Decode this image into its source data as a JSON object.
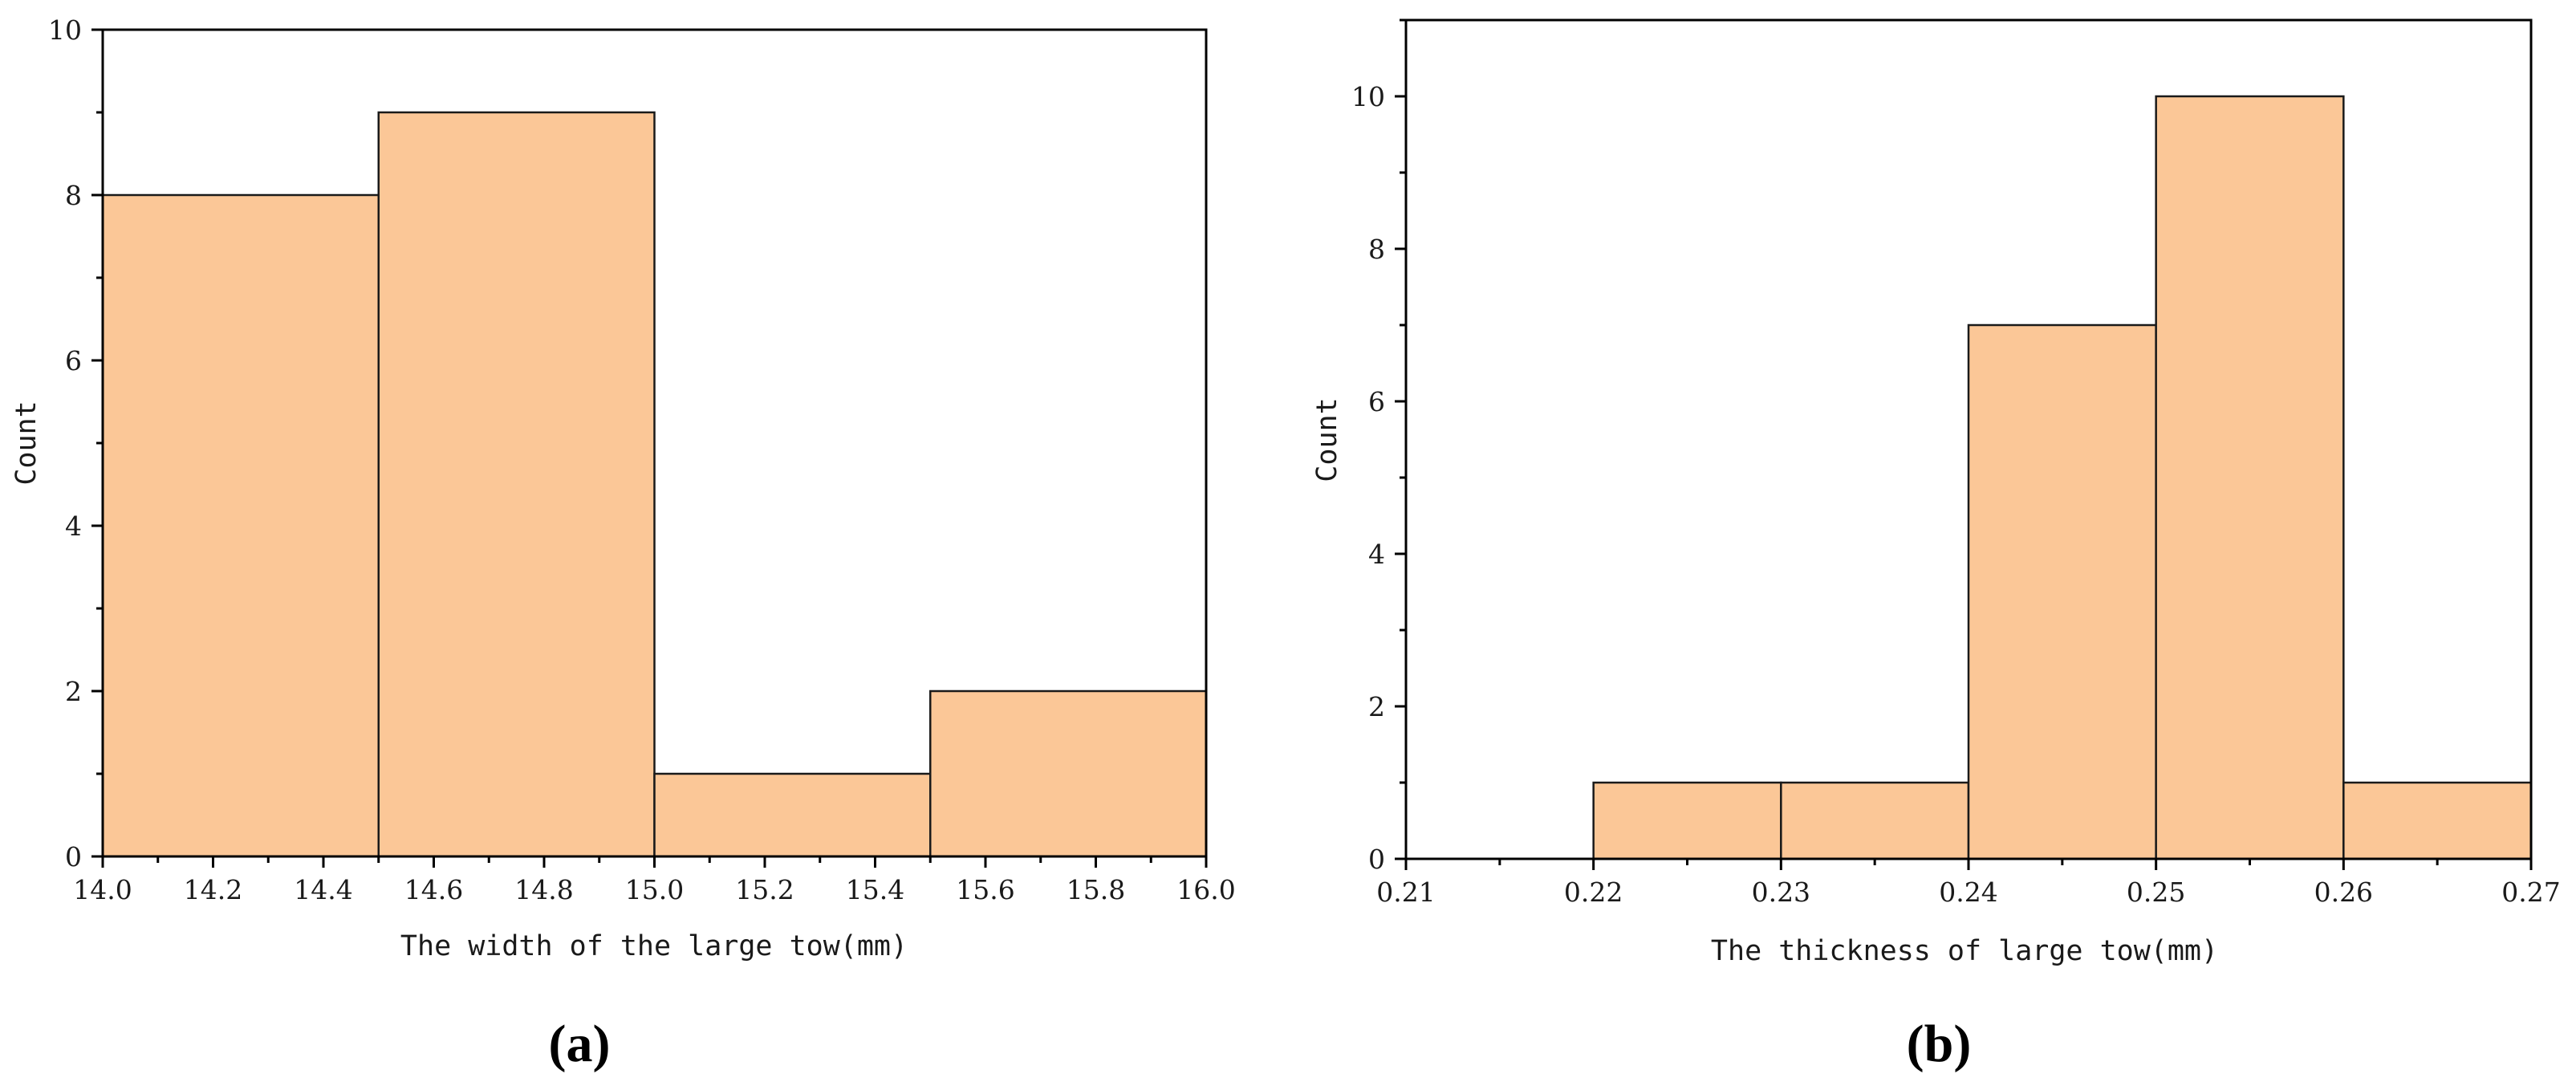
{
  "bar_color": "#FBC797",
  "chart_data": [
    {
      "type": "bar",
      "panel_label": "(a)",
      "title": "",
      "xlabel": "The width of the large tow(mm)",
      "ylabel": "Count",
      "xlim": [
        14.0,
        16.0
      ],
      "ylim": [
        0,
        10
      ],
      "x_ticks": [
        "14.0",
        "14.2",
        "14.4",
        "14.6",
        "14.8",
        "15.0",
        "15.2",
        "15.4",
        "15.6",
        "15.8",
        "16.0"
      ],
      "y_ticks": [
        "0",
        "2",
        "4",
        "6",
        "8",
        "10"
      ],
      "bins": [
        {
          "start": 14.0,
          "end": 14.5,
          "count": 8
        },
        {
          "start": 14.5,
          "end": 15.0,
          "count": 9
        },
        {
          "start": 15.0,
          "end": 15.5,
          "count": 1
        },
        {
          "start": 15.5,
          "end": 16.0,
          "count": 2
        }
      ]
    },
    {
      "type": "bar",
      "panel_label": "(b)",
      "title": "",
      "xlabel": "The thickness of large tow(mm)",
      "ylabel": "Count",
      "xlim": [
        0.21,
        0.27
      ],
      "ylim": [
        0,
        11
      ],
      "x_ticks": [
        "0.21",
        "0.22",
        "0.23",
        "0.24",
        "0.25",
        "0.26",
        "0.27"
      ],
      "y_ticks": [
        "0",
        "2",
        "4",
        "6",
        "8",
        "10"
      ],
      "bins": [
        {
          "start": 0.22,
          "end": 0.23,
          "count": 1
        },
        {
          "start": 0.23,
          "end": 0.24,
          "count": 1
        },
        {
          "start": 0.24,
          "end": 0.25,
          "count": 7
        },
        {
          "start": 0.25,
          "end": 0.26,
          "count": 10
        },
        {
          "start": 0.26,
          "end": 0.27,
          "count": 1
        }
      ]
    }
  ]
}
